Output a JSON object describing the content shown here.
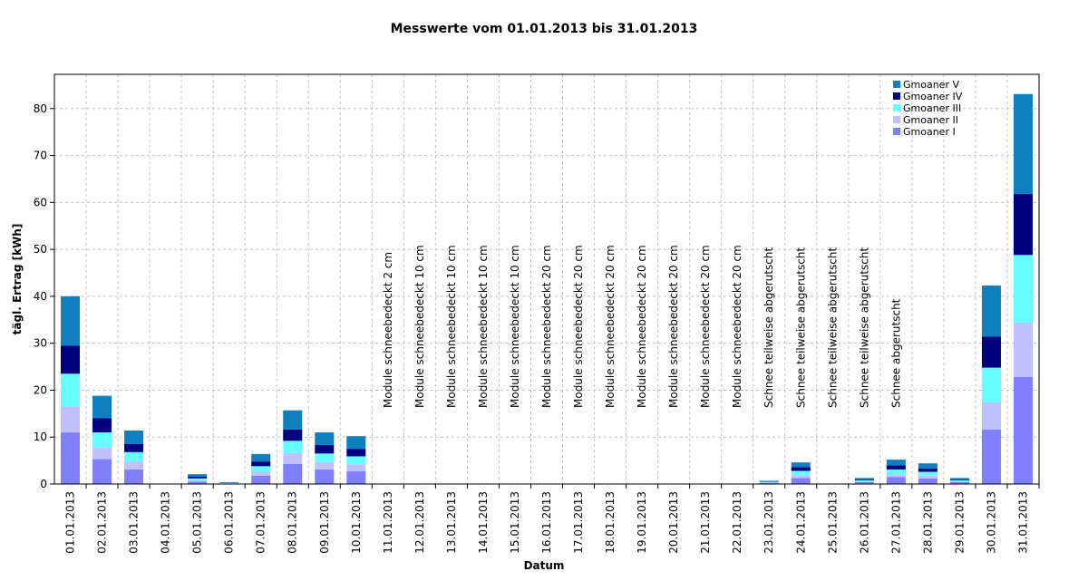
{
  "chart_data": {
    "type": "stacked_bar",
    "title": "Messwerte vom 01.01.2013 bis 31.01.2013",
    "x_label": "Datum",
    "y_label": "tägl. Ertrag [kWh]",
    "categories": [
      "01.01.2013",
      "02.01.2013",
      "03.01.2013",
      "04.01.2013",
      "05.01.2013",
      "06.01.2013",
      "07.01.2013",
      "08.01.2013",
      "09.01.2013",
      "10.01.2013",
      "11.01.2013",
      "12.01.2013",
      "13.01.2013",
      "14.01.2013",
      "15.01.2013",
      "16.01.2013",
      "17.01.2013",
      "18.01.2013",
      "19.01.2013",
      "20.01.2013",
      "21.01.2013",
      "22.01.2013",
      "23.01.2013",
      "24.01.2013",
      "25.01.2013",
      "26.01.2013",
      "27.01.2013",
      "28.01.2013",
      "29.01.2013",
      "30.01.2013",
      "31.01.2013"
    ],
    "annotations": [
      null,
      null,
      null,
      null,
      null,
      null,
      null,
      null,
      null,
      null,
      "Module schneebedeckt 2 cm",
      "Module schneebedeckt 10 cm",
      "Module schneebedeckt 10 cm",
      "Module schneebedeckt 10 cm",
      "Module schneebedeckt 10 cm",
      "Module schneebedeckt 20 cm",
      "Module schneebedeckt 20 cm",
      "Module schneebedeckt 20 cm",
      "Module schneebedeckt 20 cm",
      "Module schneebedeckt 20 cm",
      "Module schneebedeckt 20 cm",
      "Module schneebedeckt 20 cm",
      "Schnee teilweise abgerutscht",
      "Schnee teilweise abgerutscht",
      "Schnee teilweise abgerutscht",
      "Schnee teilweise abgerutscht",
      "Schnee abgerutscht",
      null,
      null,
      null,
      null
    ],
    "series": [
      {
        "name": "Gmoaner I",
        "color": "#8080ff",
        "values": [
          11,
          5.3,
          3.1,
          0,
          0.5,
          0.1,
          1.8,
          4.3,
          3.1,
          2.7,
          0,
          0,
          0,
          0,
          0,
          0,
          0,
          0,
          0,
          0,
          0,
          0,
          0.2,
          1.3,
          0,
          0.4,
          1.5,
          1.2,
          0.4,
          11.6,
          22.8
        ]
      },
      {
        "name": "Gmoaner II",
        "color": "#c0c0ff",
        "values": [
          5.5,
          2.5,
          1.7,
          0,
          0.3,
          0.05,
          0.8,
          2.3,
          1.6,
          1.5,
          0,
          0,
          0,
          0,
          0,
          0,
          0,
          0,
          0,
          0,
          0,
          0,
          0.1,
          0.6,
          0,
          0.2,
          0.6,
          0.6,
          0.2,
          5.8,
          11.6
        ]
      },
      {
        "name": "Gmoaner III",
        "color": "#66ffff",
        "values": [
          7,
          3.2,
          2,
          0,
          0.4,
          0.1,
          1.2,
          2.6,
          1.8,
          1.7,
          0,
          0,
          0,
          0,
          0,
          0,
          0,
          0,
          0,
          0,
          0,
          0,
          0.2,
          0.9,
          0,
          0.2,
          1,
          0.8,
          0.2,
          7.4,
          14.4
        ]
      },
      {
        "name": "Gmoaner IV",
        "color": "#000080",
        "values": [
          6,
          3,
          1.7,
          0,
          0.4,
          0.1,
          1,
          2.4,
          1.8,
          1.6,
          0,
          0,
          0,
          0,
          0,
          0,
          0,
          0,
          0,
          0,
          0,
          0,
          0.1,
          0.8,
          0,
          0.2,
          0.9,
          0.7,
          0.2,
          6.6,
          13
        ]
      },
      {
        "name": "Gmoaner V",
        "color": "#0f7fbf",
        "values": [
          10.5,
          4.8,
          2.9,
          0,
          0.5,
          0.05,
          1.6,
          4.1,
          2.7,
          2.7,
          0,
          0,
          0,
          0,
          0,
          0,
          0,
          0,
          0,
          0,
          0,
          0,
          0.1,
          1,
          0,
          0.3,
          1.2,
          1.1,
          0.3,
          10.9,
          21.3
        ]
      }
    ],
    "ylim": [
      0,
      87.3
    ],
    "yticks": [
      0,
      10,
      20,
      30,
      40,
      50,
      60,
      70,
      80
    ],
    "grid": true,
    "legend": "upper right"
  }
}
